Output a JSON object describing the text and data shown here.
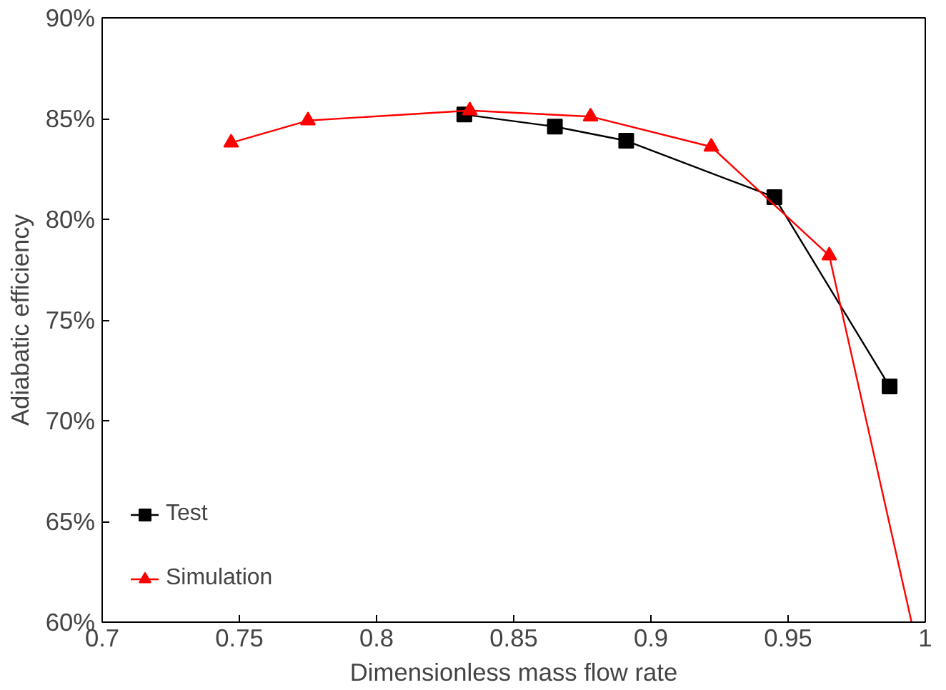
{
  "chart_data": {
    "type": "line",
    "xlabel": "Dimensionless mass flow rate",
    "ylabel": "Adiabatic efficiency",
    "xlim": [
      0.7,
      1
    ],
    "xticks": [
      0.7,
      0.75,
      0.8,
      0.85,
      0.9,
      0.95,
      1
    ],
    "ylim": [
      60,
      90
    ],
    "yticks": [
      {
        "value": 60,
        "label": "60%"
      },
      {
        "value": 65,
        "label": "65%"
      },
      {
        "value": 70,
        "label": "70%"
      },
      {
        "value": 75,
        "label": "75%"
      },
      {
        "value": 80,
        "label": "80%"
      },
      {
        "value": 85,
        "label": "85%"
      },
      {
        "value": 90,
        "label": "90%"
      }
    ],
    "grid": false,
    "legend": "bottom left",
    "series": [
      {
        "name": "Test",
        "color": "#000000",
        "marker": "square",
        "x": [
          0.832,
          0.865,
          0.891,
          0.945,
          0.987
        ],
        "values": [
          85.2,
          84.6,
          83.9,
          81.1,
          71.7
        ]
      },
      {
        "name": "Simulation",
        "color": "#ff0000",
        "marker": "triangle",
        "x": [
          0.747,
          0.775,
          0.834,
          0.878,
          0.922,
          0.965
        ],
        "values": [
          83.8,
          84.9,
          85.4,
          85.1,
          83.6,
          78.2
        ]
      },
      {
        "color": "#ff0000",
        "marker": "none",
        "x": [
          0.965,
          0.995
        ],
        "values": [
          78.2,
          60
        ]
      }
    ]
  }
}
